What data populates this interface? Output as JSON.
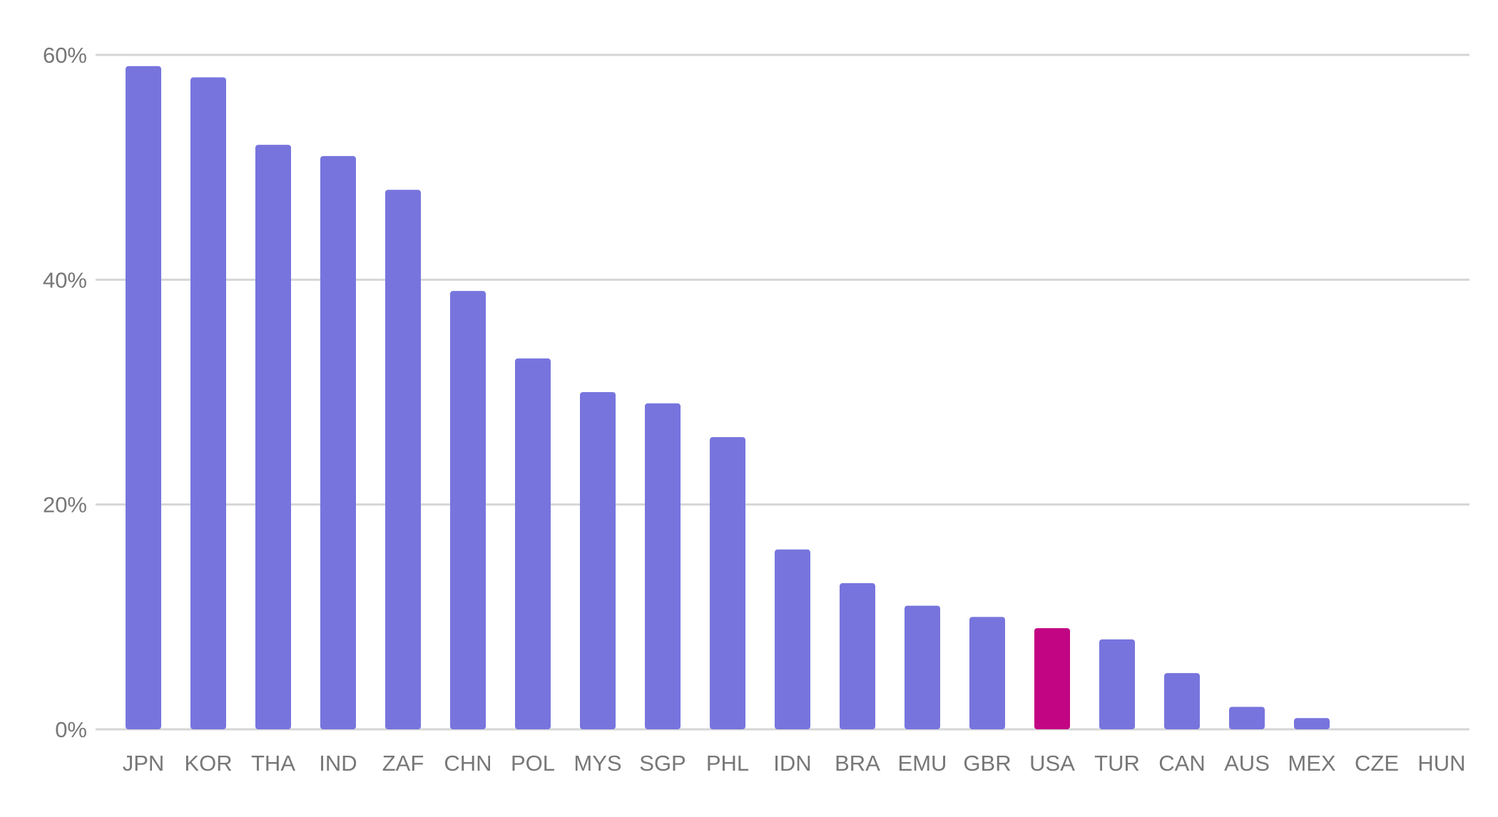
{
  "chart_data": {
    "type": "bar",
    "title": "",
    "xlabel": "",
    "ylabel": "",
    "ylim": [
      0,
      60
    ],
    "yticks": [
      0,
      20,
      40,
      60
    ],
    "ytick_labels": [
      "0%",
      "20%",
      "40%",
      "60%"
    ],
    "grid": true,
    "legend": "none",
    "colors": {
      "default": "#7775dd",
      "highlight": "#c20583",
      "grid": "#d6d6d6",
      "tick_text": "#777777"
    },
    "highlight_category": "USA",
    "categories": [
      "JPN",
      "KOR",
      "THA",
      "IND",
      "ZAF",
      "CHN",
      "POL",
      "MYS",
      "SGP",
      "PHL",
      "IDN",
      "BRA",
      "EMU",
      "GBR",
      "USA",
      "TUR",
      "CAN",
      "AUS",
      "MEX",
      "CZE",
      "HUN"
    ],
    "values": [
      59,
      58,
      52,
      51,
      48,
      39,
      33,
      30,
      29,
      26,
      16,
      13,
      11,
      10,
      9,
      8,
      5,
      2,
      1,
      0,
      0
    ]
  }
}
